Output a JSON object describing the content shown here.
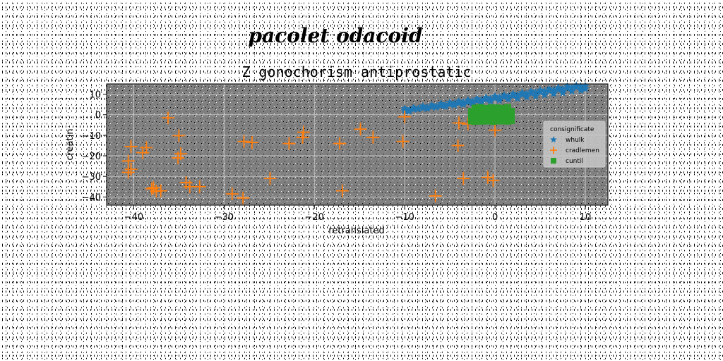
{
  "figure": {
    "suptitle": "pacolet odacoid"
  },
  "chart_data": {
    "type": "scatter",
    "title": "Z gonochorism antiprostatic",
    "xlabel": "retranslated",
    "ylabel": "creatin",
    "xlim": [
      -43,
      12.5
    ],
    "ylim": [
      -44,
      15
    ],
    "xticks": [
      -40,
      -30,
      -20,
      -10,
      0,
      10
    ],
    "yticks": [
      -40,
      -30,
      -20,
      -10,
      0,
      10
    ],
    "xtick_labels": [
      "−40",
      "−30",
      "−20",
      "−10",
      "0",
      "10"
    ],
    "ytick_labels": [
      "−40",
      "−30",
      "−20",
      "−10",
      "0",
      "10"
    ],
    "grid": true,
    "plot_background": "#808080",
    "legend": {
      "title": "consignificate",
      "position": "right"
    },
    "series": [
      {
        "name": "whulk",
        "marker": "star",
        "color": "#1f77b4",
        "x": [
          -10.0,
          -9.5,
          -9.0,
          -8.5,
          -8.0,
          -7.5,
          -7.0,
          -6.5,
          -6.0,
          -5.5,
          -5.0,
          -4.5,
          -4.0,
          -3.5,
          -3.0,
          -2.5,
          -2.0,
          -1.5,
          -1.0,
          -0.5,
          0.0,
          0.5,
          1.0,
          1.5,
          2.0,
          2.5,
          3.0,
          3.5,
          4.0,
          4.5,
          5.0,
          5.5,
          6.0,
          6.5,
          7.0,
          7.5,
          8.0,
          8.5,
          9.0,
          9.5,
          10.0,
          -10.0,
          -9.0,
          -8.0,
          -7.0,
          -6.0,
          -5.0,
          -4.0,
          -3.0,
          -2.0,
          -1.0,
          0.0,
          1.0,
          2.0,
          3.0,
          4.0,
          5.0,
          6.0,
          7.0,
          8.0,
          9.0,
          10.0,
          -9.5,
          -8.5,
          -7.5,
          -6.5,
          -5.5,
          -4.5,
          -3.5,
          -2.5,
          -1.5,
          -0.5,
          0.5,
          1.5,
          2.5,
          3.5,
          4.5,
          5.5,
          6.5,
          7.5,
          8.5,
          9.5
        ],
        "y": [
          2.0,
          2.3,
          2.6,
          2.9,
          3.2,
          3.5,
          3.8,
          4.1,
          4.4,
          4.7,
          5.0,
          5.3,
          5.6,
          5.9,
          6.2,
          6.5,
          6.8,
          7.1,
          7.4,
          7.7,
          8.0,
          8.3,
          8.6,
          8.9,
          9.2,
          9.5,
          9.8,
          10.1,
          10.4,
          10.7,
          11.0,
          11.3,
          11.6,
          11.9,
          12.2,
          12.5,
          12.8,
          13.1,
          13.4,
          13.7,
          14.0,
          3.0,
          3.5,
          4.2,
          4.8,
          5.4,
          6.0,
          6.6,
          7.2,
          7.8,
          8.4,
          9.0,
          9.6,
          10.2,
          10.8,
          11.4,
          12.0,
          12.6,
          13.2,
          13.8,
          14.2,
          12.6,
          1.6,
          2.8,
          3.0,
          3.6,
          4.0,
          4.6,
          5.0,
          5.6,
          6.0,
          6.6,
          7.0,
          7.6,
          8.0,
          8.6,
          9.0,
          9.6,
          10.2,
          10.6,
          11.4,
          11.8
        ]
      },
      {
        "name": "cradlemen",
        "marker": "plus",
        "color": "#ff7f0e",
        "x": [
          -36.2,
          -35.0,
          -40.3,
          -40.6,
          -38.6,
          -39.0,
          -34.8,
          -35.1,
          -40.6,
          -40.3,
          -37.0,
          -37.8,
          -37.5,
          -38.0,
          -34.2,
          -33.8,
          -32.7,
          -29.1,
          -27.9,
          -27.8,
          -26.9,
          -24.9,
          -22.8,
          -21.2,
          -21.3,
          -17.2,
          -16.9,
          -14.9,
          -13.5,
          -10.0,
          -10.2,
          -6.6,
          -4.0,
          -4.1,
          -3.5,
          -3.0,
          -0.8,
          -0.2,
          0.0
        ],
        "y": [
          -1.5,
          -10.2,
          -15.5,
          -22.5,
          -16.0,
          -18.5,
          -19.0,
          -21.0,
          -28.0,
          -26.5,
          -37.0,
          -35.5,
          -37.2,
          -36.0,
          -33.0,
          -35.0,
          -35.0,
          -38.5,
          -40.5,
          -13.0,
          -13.5,
          -31.0,
          -14.0,
          -8.5,
          -11.0,
          -14.0,
          -37.0,
          -7.0,
          -11.0,
          -1.0,
          -13.0,
          -39.5,
          -4.0,
          -15.0,
          -31.0,
          -4.5,
          -30.5,
          -32.0,
          -7.5
        ]
      },
      {
        "name": "cuntil",
        "marker": "square",
        "color": "#2ca02c",
        "x": [
          -2.6,
          -2.2,
          -1.8,
          -1.4,
          -1.0,
          -0.6,
          -0.2,
          0.2,
          0.6,
          1.0,
          1.4,
          1.8,
          -2.6,
          -2.2,
          -1.8,
          -1.4,
          -1.0,
          -0.6,
          -0.2,
          0.2,
          0.6,
          1.0,
          1.4,
          1.8,
          -2.6,
          -2.2,
          -1.8,
          -1.4,
          -1.0,
          -0.6,
          -0.2,
          0.2,
          0.6,
          1.0,
          1.4,
          1.8,
          -2.2,
          -1.6,
          -1.0,
          -0.4,
          0.2,
          0.8,
          1.4,
          -1.8,
          -1.0,
          -0.2,
          0.6,
          1.4
        ],
        "y": [
          -3.0,
          -3.2,
          -2.8,
          -3.1,
          -2.9,
          -3.0,
          -3.2,
          -2.7,
          -3.0,
          -2.9,
          -3.1,
          -2.8,
          -0.5,
          -0.2,
          -0.6,
          -0.3,
          -0.1,
          -0.4,
          -0.2,
          -0.5,
          -0.3,
          -0.6,
          -0.2,
          -0.4,
          1.5,
          1.8,
          1.6,
          1.9,
          1.7,
          2.0,
          1.6,
          1.8,
          1.9,
          1.5,
          1.7,
          1.6,
          3.2,
          3.5,
          3.0,
          3.4,
          3.3,
          3.1,
          3.5,
          0.8,
          -1.8,
          0.6,
          -1.6,
          0.9
        ]
      }
    ]
  }
}
